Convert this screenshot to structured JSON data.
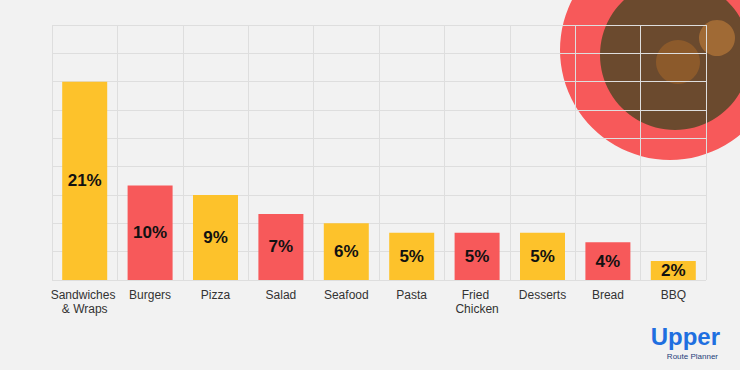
{
  "chart_data": {
    "type": "bar",
    "categories": [
      "Sandwiches & Wraps",
      "Burgers",
      "Pizza",
      "Salad",
      "Seafood",
      "Pasta",
      "Fried Chicken",
      "Desserts",
      "Bread",
      "BBQ"
    ],
    "values": [
      21,
      10,
      9,
      7,
      6,
      5,
      5,
      5,
      4,
      2
    ],
    "value_labels": [
      "21%",
      "10%",
      "9%",
      "7%",
      "6%",
      "5%",
      "5%",
      "5%",
      "4%",
      "2%"
    ],
    "colors": [
      "#fdc22b",
      "#f7595a",
      "#fdc22b",
      "#f7595a",
      "#fdc22b",
      "#fdc22b",
      "#f7595a",
      "#fdc22b",
      "#f7595a",
      "#fdc22b"
    ],
    "ylim": [
      0,
      27
    ],
    "yticks": [
      0,
      3,
      6,
      9,
      12,
      15,
      18,
      21,
      24,
      27
    ],
    "grid": true,
    "data_labels": true,
    "tick_labels": "x",
    "annotations": [
      "Upper",
      "Route Planner"
    ]
  }
}
